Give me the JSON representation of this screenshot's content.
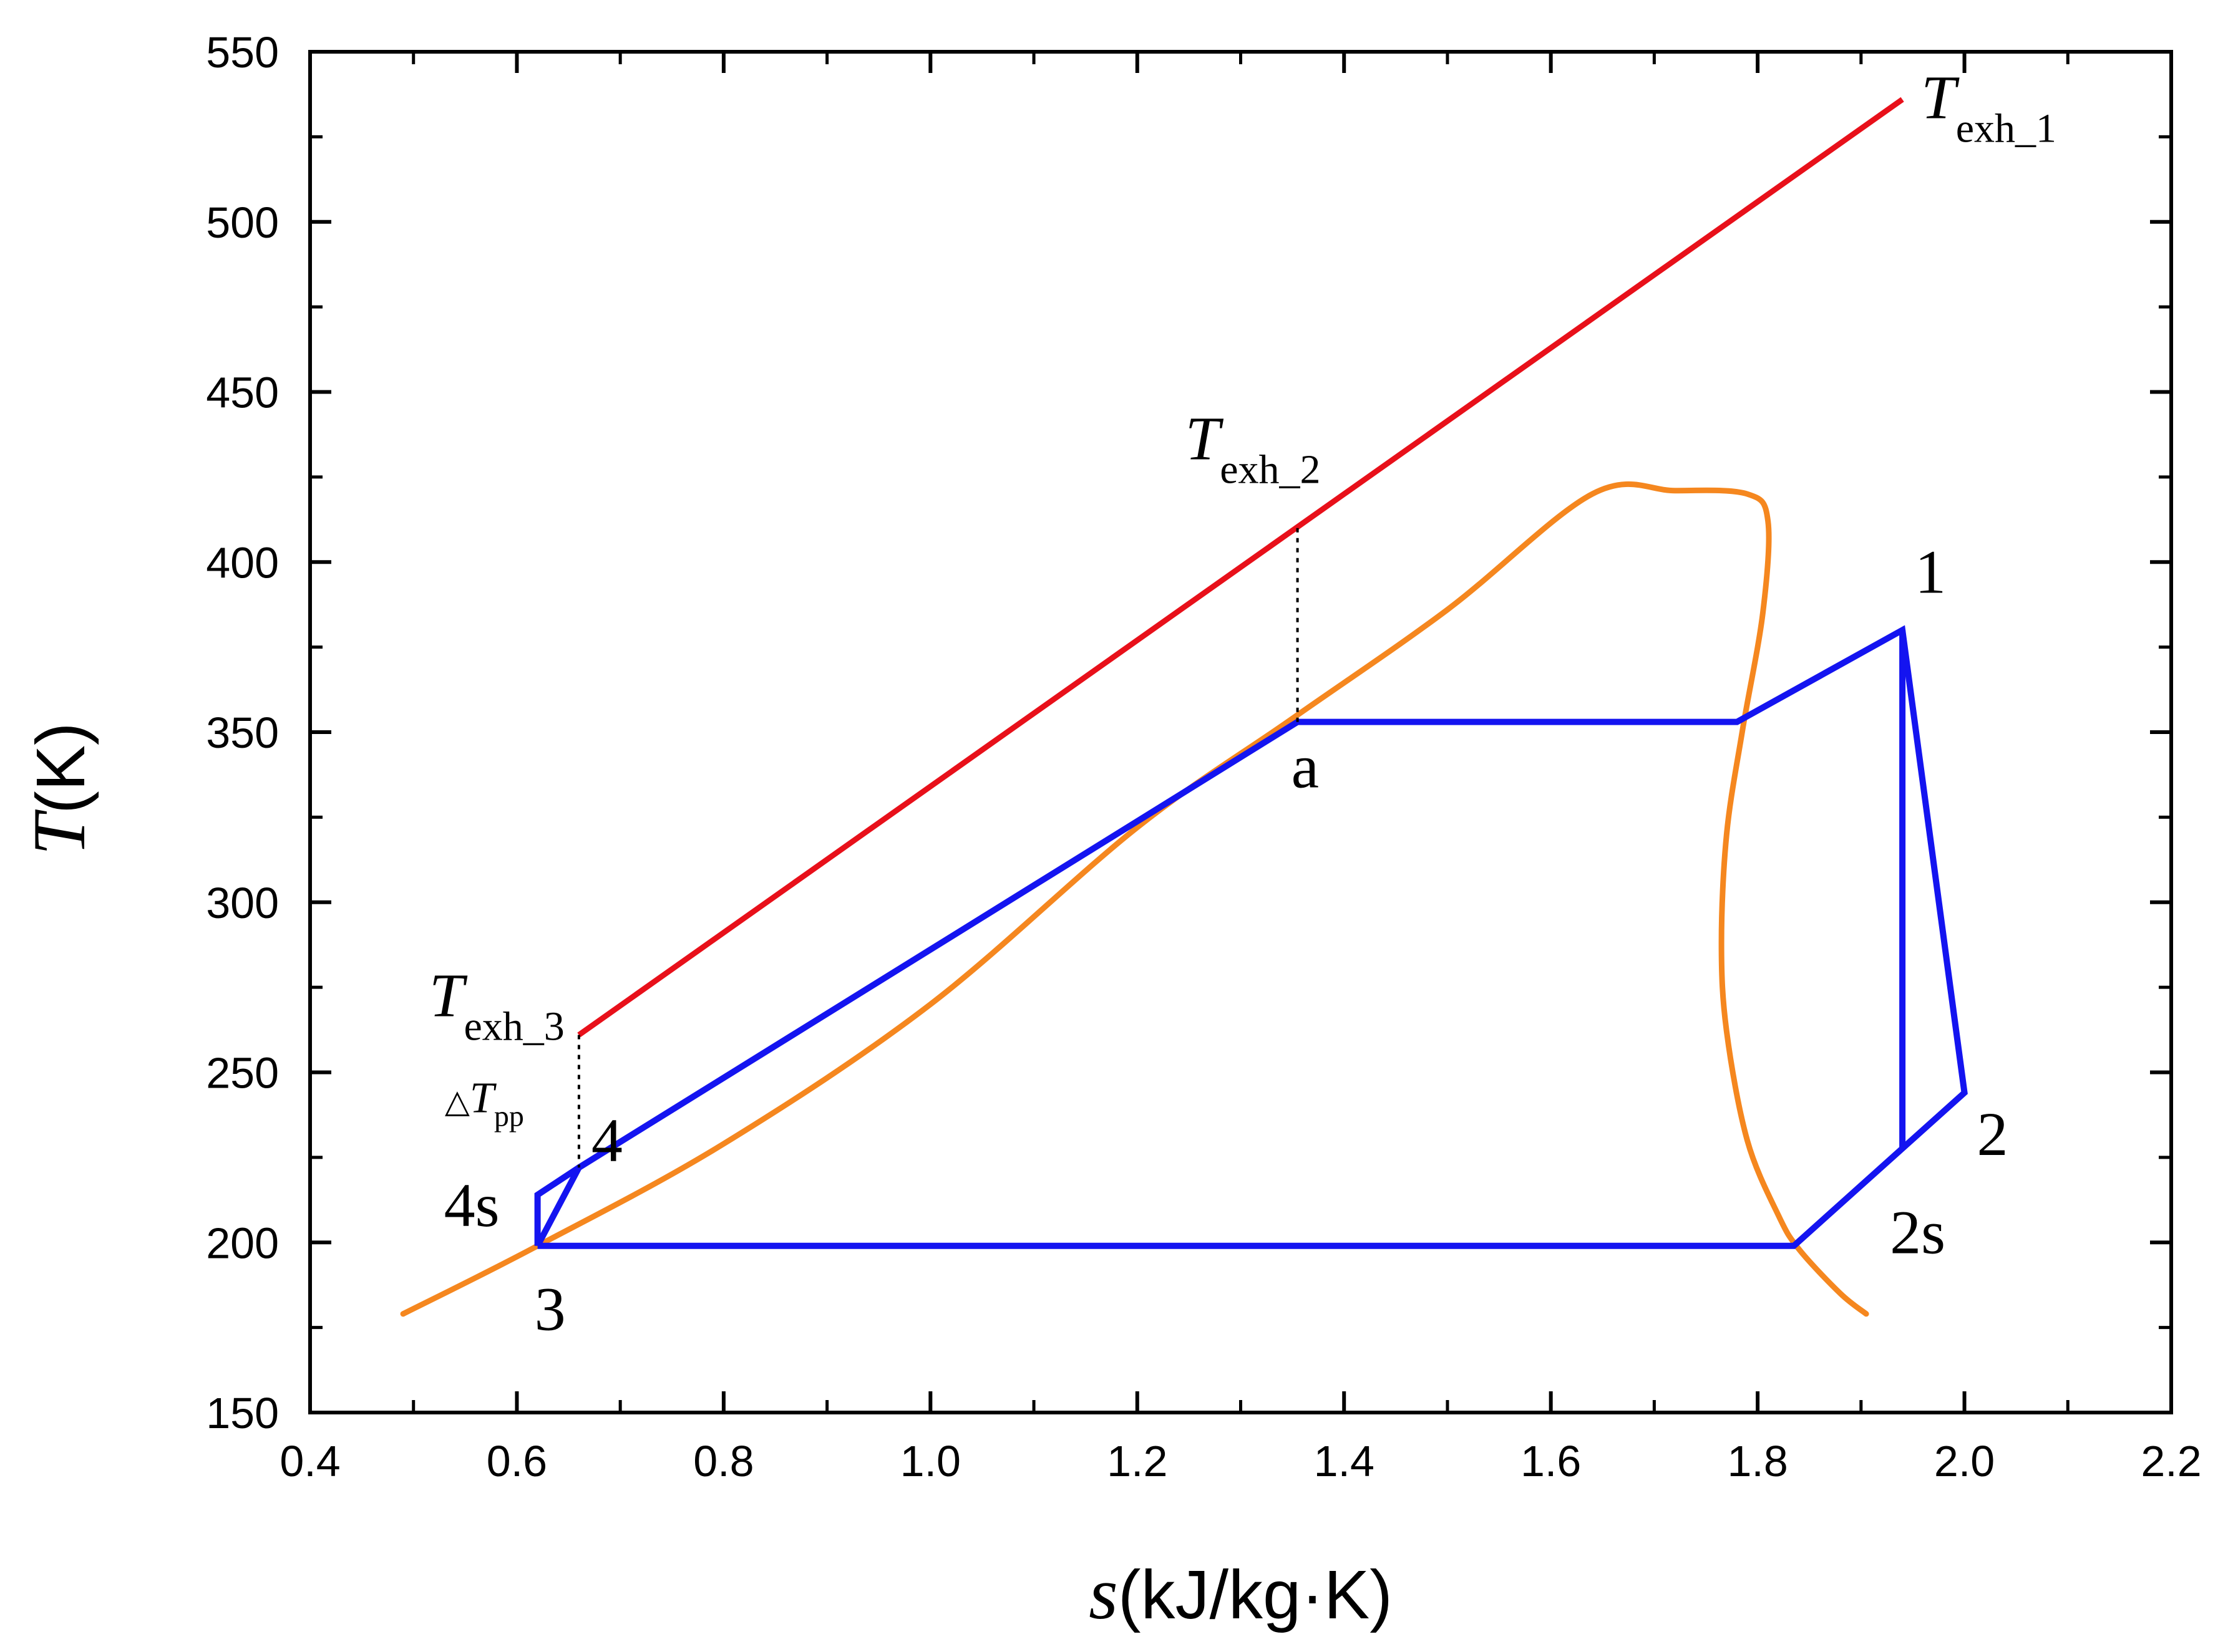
{
  "chart_data": {
    "type": "line",
    "title": "",
    "xlabel": {
      "symbol": "s",
      "unit": "(kJ/kg·K)"
    },
    "ylabel": {
      "symbol": "T",
      "unit": "(K)"
    },
    "xlim": [
      0.4,
      2.2
    ],
    "ylim": [
      150,
      550
    ],
    "xticks": [
      "0.4",
      "0.6",
      "0.8",
      "1.0",
      "1.2",
      "1.4",
      "1.6",
      "1.8",
      "2.0",
      "2.2"
    ],
    "yticks": [
      "150",
      "200",
      "250",
      "300",
      "350",
      "400",
      "450",
      "500",
      "550"
    ],
    "grid": false,
    "colors": {
      "exhaust": "#e8101a",
      "dome": "#f5871f",
      "cycle": "#1414f0",
      "axis": "#000000"
    },
    "series": [
      {
        "name": "exhaust",
        "color": "#e8101a",
        "points": [
          [
            0.66,
            261
          ],
          [
            1.94,
            536
          ]
        ]
      },
      {
        "name": "saturation-dome",
        "color": "#f5871f",
        "points": [
          [
            0.49,
            179
          ],
          [
            0.62,
            199
          ],
          [
            0.8,
            229
          ],
          [
            1.0,
            270
          ],
          [
            1.2,
            322
          ],
          [
            1.35,
            354
          ],
          [
            1.5,
            386
          ],
          [
            1.64,
            420
          ],
          [
            1.72,
            421
          ],
          [
            1.79,
            420
          ],
          [
            1.81,
            412
          ],
          [
            1.805,
            385
          ],
          [
            1.785,
            350
          ],
          [
            1.77,
            320
          ],
          [
            1.765,
            288
          ],
          [
            1.77,
            262
          ],
          [
            1.79,
            230
          ],
          [
            1.82,
            208
          ],
          [
            1.84,
            198
          ],
          [
            1.88,
            185
          ],
          [
            1.905,
            179
          ]
        ]
      },
      {
        "name": "cycle",
        "color": "#1414f0",
        "segments": [
          [
            [
              0.62,
              199
            ],
            [
              0.66,
              222
            ],
            [
              1.355,
              353
            ],
            [
              1.78,
              353
            ],
            [
              1.94,
              380
            ],
            [
              2.0,
              244
            ],
            [
              1.835,
              199
            ],
            [
              0.62,
              199
            ]
          ],
          [
            [
              1.94,
              380
            ],
            [
              1.94,
              228
            ]
          ],
          [
            [
              0.66,
              222
            ],
            [
              0.62,
              214
            ],
            [
              0.62,
              199
            ]
          ]
        ]
      },
      {
        "name": "reference-lines",
        "style": "dotted",
        "segments": [
          [
            [
              1.355,
              410
            ],
            [
              1.355,
              353
            ]
          ],
          [
            [
              0.66,
              261
            ],
            [
              0.66,
              222
            ]
          ]
        ]
      }
    ],
    "annotations": [
      {
        "id": "texh1",
        "symbol": "T",
        "sub": "exh_1",
        "x": 1.94,
        "y": 536
      },
      {
        "id": "texh2",
        "symbol": "T",
        "sub": "exh_2",
        "x": 1.355,
        "y": 410
      },
      {
        "id": "texh3",
        "symbol": "T",
        "sub": "exh_3",
        "x": 0.66,
        "y": 261
      },
      {
        "id": "dtpp",
        "prefix": "△",
        "symbol": "T",
        "sub": "pp",
        "x": 0.66,
        "y": 241
      },
      {
        "id": "p1",
        "text": "1",
        "x": 1.94,
        "y": 380
      },
      {
        "id": "p2",
        "text": "2",
        "x": 2.0,
        "y": 244
      },
      {
        "id": "p2s",
        "text": "2s",
        "x": 1.94,
        "y": 228
      },
      {
        "id": "p3",
        "text": "3",
        "x": 0.62,
        "y": 199
      },
      {
        "id": "p4",
        "text": "4",
        "x": 0.66,
        "y": 222
      },
      {
        "id": "p4s",
        "text": "4s",
        "x": 0.62,
        "y": 214
      },
      {
        "id": "pa",
        "text": "a",
        "x": 1.355,
        "y": 353
      }
    ]
  }
}
